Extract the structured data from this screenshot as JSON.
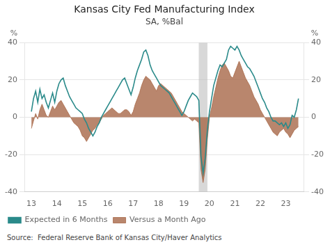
{
  "chart_data": {
    "type": "line",
    "title": "Kansas City Fed Manufacturing Index",
    "subtitle": "SA, %Bal",
    "ylabel": "%",
    "y2label": "%",
    "source": "Source:  Federal Reserve Bank of Kansas City/Haver Analytics",
    "x": [
      13.0,
      13.083,
      13.167,
      13.25,
      13.333,
      13.417,
      13.5,
      13.583,
      13.667,
      13.75,
      13.833,
      13.917,
      14.0,
      14.083,
      14.167,
      14.25,
      14.333,
      14.417,
      14.5,
      14.583,
      14.667,
      14.75,
      14.833,
      14.917,
      15.0,
      15.083,
      15.167,
      15.25,
      15.333,
      15.417,
      15.5,
      15.583,
      15.667,
      15.75,
      15.833,
      15.917,
      16.0,
      16.083,
      16.167,
      16.25,
      16.333,
      16.417,
      16.5,
      16.583,
      16.667,
      16.75,
      16.833,
      16.917,
      17.0,
      17.083,
      17.167,
      17.25,
      17.333,
      17.417,
      17.5,
      17.583,
      17.667,
      17.75,
      17.833,
      17.917,
      18.0,
      18.083,
      18.167,
      18.25,
      18.333,
      18.417,
      18.5,
      18.583,
      18.667,
      18.75,
      18.833,
      18.917,
      19.0,
      19.083,
      19.167,
      19.25,
      19.333,
      19.417,
      19.5,
      19.583,
      19.667,
      19.75,
      19.833,
      19.917,
      20.0,
      20.083,
      20.167,
      20.25,
      20.333,
      20.417,
      20.5,
      20.583,
      20.667,
      20.75,
      20.833,
      20.917,
      21.0,
      21.083,
      21.167,
      21.25,
      21.333,
      21.417,
      21.5,
      21.583,
      21.667,
      21.75,
      21.833,
      21.917,
      22.0,
      22.083,
      22.167,
      22.25,
      22.333,
      22.417,
      22.5,
      22.583,
      22.667,
      22.75,
      22.833,
      22.917,
      23.0,
      23.083,
      23.167,
      23.25,
      23.333,
      23.417,
      23.5
    ],
    "series": [
      {
        "name": "Expected in 6 Months",
        "type": "line",
        "color": "#2a8a8a",
        "values": [
          3,
          10,
          14,
          8,
          15,
          10,
          12,
          8,
          5,
          9,
          13,
          8,
          14,
          18,
          20,
          21,
          17,
          14,
          11,
          9,
          7,
          5,
          4,
          3,
          2,
          -1,
          -3,
          -6,
          -8,
          -10,
          -8,
          -5,
          -3,
          0,
          2,
          4,
          6,
          8,
          10,
          12,
          14,
          16,
          18,
          20,
          21,
          18,
          15,
          12,
          16,
          21,
          25,
          28,
          31,
          35,
          36,
          33,
          28,
          25,
          23,
          21,
          19,
          17,
          16,
          15,
          14,
          13,
          11,
          9,
          7,
          5,
          3,
          1,
          3,
          6,
          9,
          11,
          13,
          12,
          11,
          9,
          -21,
          -30,
          -22,
          -7,
          3,
          10,
          17,
          21,
          25,
          28,
          27,
          29,
          31,
          36,
          38,
          37,
          36,
          38,
          36,
          33,
          31,
          29,
          27,
          26,
          24,
          22,
          19,
          16,
          13,
          10,
          8,
          5,
          3,
          0,
          -2,
          -2,
          -3,
          -4,
          -3,
          -5,
          -3,
          -6,
          -4,
          1,
          0,
          4,
          10
        ]
      },
      {
        "name": "Versus a Month Ago",
        "type": "area",
        "color": "#a86848",
        "values": [
          -6,
          -2,
          2,
          -1,
          4,
          7,
          4,
          1,
          0,
          3,
          6,
          4,
          6,
          8,
          9,
          7,
          5,
          3,
          1,
          -1,
          -3,
          -4,
          -5,
          -7,
          -10,
          -11,
          -13,
          -11,
          -9,
          -7,
          -6,
          -4,
          -3,
          -1,
          1,
          2,
          3,
          4,
          5,
          4,
          3,
          2,
          2,
          3,
          4,
          4,
          3,
          1,
          3,
          7,
          10,
          13,
          17,
          20,
          22,
          21,
          20,
          18,
          16,
          14,
          17,
          18,
          17,
          16,
          15,
          14,
          13,
          11,
          9,
          7,
          5,
          3,
          2,
          1,
          0,
          -1,
          -2,
          -1,
          -2,
          -3,
          -28,
          -35,
          -28,
          -12,
          0,
          5,
          11,
          16,
          21,
          25,
          28,
          29,
          27,
          25,
          22,
          21,
          24,
          27,
          30,
          27,
          24,
          21,
          19,
          17,
          14,
          11,
          9,
          7,
          4,
          2,
          0,
          -2,
          -4,
          -6,
          -8,
          -9,
          -10,
          -8,
          -7,
          -6,
          -8,
          -9,
          -11,
          -9,
          -7,
          -6,
          -5
        ]
      }
    ],
    "shaded_ranges": [
      {
        "start": 19.58,
        "end": 19.92,
        "color": "#b8b8b8"
      }
    ],
    "xlim": [
      12.75,
      23.7
    ],
    "xticks": [
      13,
      14,
      15,
      16,
      17,
      18,
      19,
      20,
      21,
      22,
      23
    ],
    "ylim": [
      -40,
      40
    ],
    "yticks": [
      -40,
      -20,
      0,
      20,
      40
    ],
    "y2lim": [
      -40,
      40
    ],
    "y2ticks": [
      -40,
      -20,
      0,
      20,
      40
    ],
    "grid": "y",
    "legend": "lower left"
  }
}
